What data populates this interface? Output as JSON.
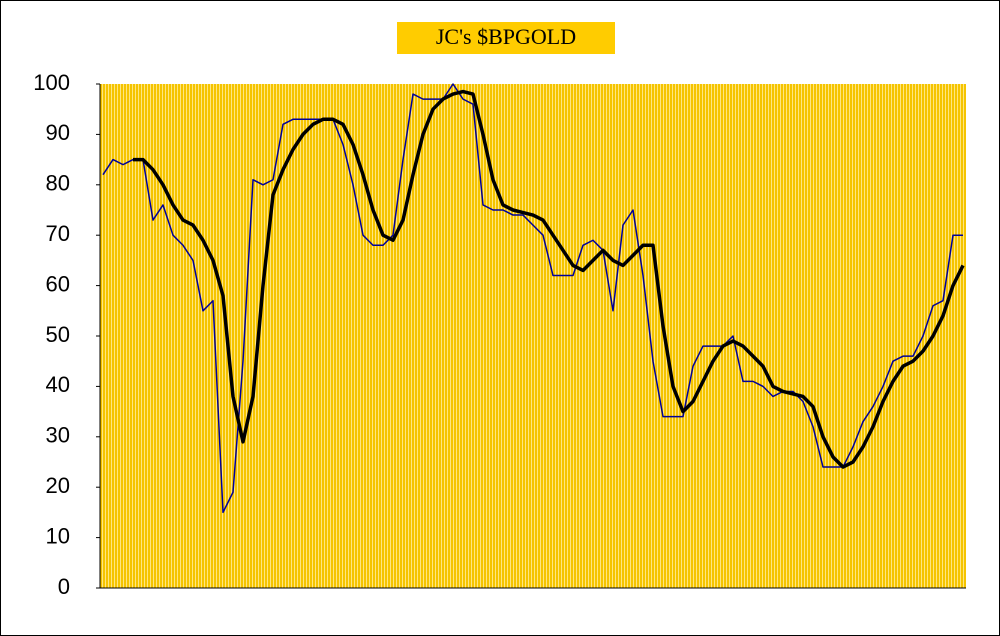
{
  "chart_data": {
    "type": "line",
    "title": "JC's $BPGOLD",
    "ylim": [
      0,
      100
    ],
    "yticks": [
      0,
      10,
      20,
      30,
      40,
      50,
      60,
      70,
      80,
      90,
      100
    ],
    "grid": true,
    "background": "#ffcc00",
    "series": [
      {
        "color": "#000099",
        "width": 1.5,
        "values": [
          82,
          85,
          84,
          85,
          85,
          73,
          76,
          70,
          68,
          65,
          55,
          57,
          15,
          19,
          45,
          81,
          80,
          81,
          92,
          93,
          93,
          93,
          93,
          93,
          88,
          80,
          70,
          68,
          68,
          70,
          85,
          98,
          97,
          97,
          97,
          100,
          97,
          96,
          76,
          75,
          75,
          74,
          74,
          72,
          70,
          62,
          62,
          62,
          68,
          69,
          67,
          55,
          72,
          75,
          62,
          45,
          34,
          34,
          34,
          44,
          48,
          48,
          48,
          50,
          41,
          41,
          40,
          38,
          39,
          39,
          37,
          32,
          24,
          24,
          24,
          28,
          33,
          36,
          40,
          45,
          46,
          46,
          50,
          56,
          57,
          70,
          70
        ]
      },
      {
        "color": "#000000",
        "width": 3.5,
        "values": [
          null,
          null,
          null,
          85,
          85,
          83,
          80,
          76,
          73,
          72,
          69,
          65,
          58,
          38,
          29,
          38,
          60,
          78,
          83,
          87,
          90,
          92,
          93,
          93,
          92,
          88,
          82,
          75,
          70,
          69,
          73,
          82,
          90,
          95,
          97,
          98,
          98.5,
          98,
          90,
          81,
          76,
          75,
          74.5,
          74,
          73,
          70,
          67,
          64,
          63,
          65,
          67,
          65,
          64,
          66,
          68,
          68,
          52,
          40,
          35,
          37,
          41,
          45,
          48,
          49,
          48,
          46,
          44,
          40,
          39,
          38.5,
          38,
          36,
          30,
          26,
          24,
          25,
          28,
          32,
          37,
          41,
          44,
          45,
          47,
          50,
          54,
          60,
          64
        ]
      }
    ]
  }
}
